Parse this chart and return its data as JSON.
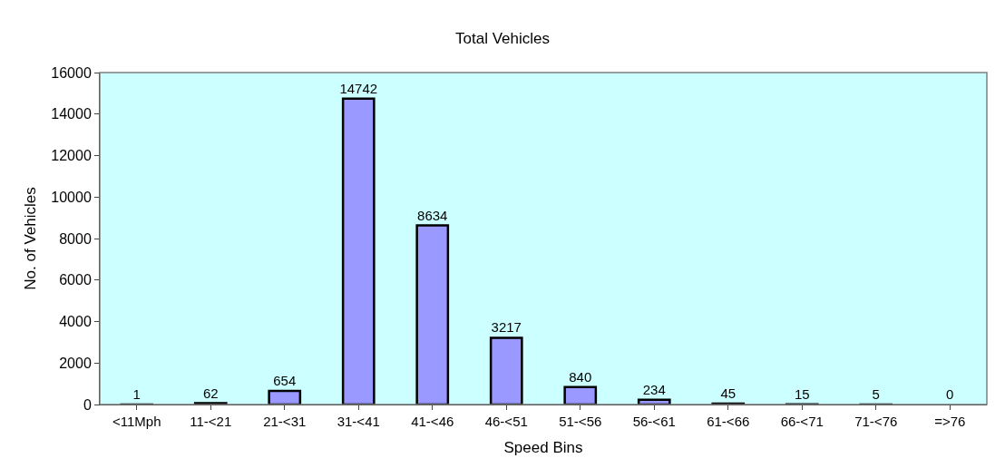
{
  "chart_data": {
    "type": "bar",
    "title": "Total Vehicles",
    "xlabel": "Speed Bins",
    "ylabel": "No. of Vehicles",
    "categories": [
      "<11Mph",
      "11-<21",
      "21-<31",
      "31-<41",
      "41-<46",
      "46-<51",
      "51-<56",
      "56-<61",
      "61-<66",
      "66-<71",
      "71-<76",
      "=>76"
    ],
    "values": [
      1,
      62,
      654,
      14742,
      8634,
      3217,
      840,
      234,
      45,
      15,
      5,
      0
    ],
    "color": "#9999ff",
    "ylim": [
      0,
      16000
    ],
    "yticks": [
      0,
      2000,
      4000,
      6000,
      8000,
      10000,
      12000,
      14000,
      16000
    ],
    "grid": false,
    "legend": false,
    "data_labels": true
  }
}
